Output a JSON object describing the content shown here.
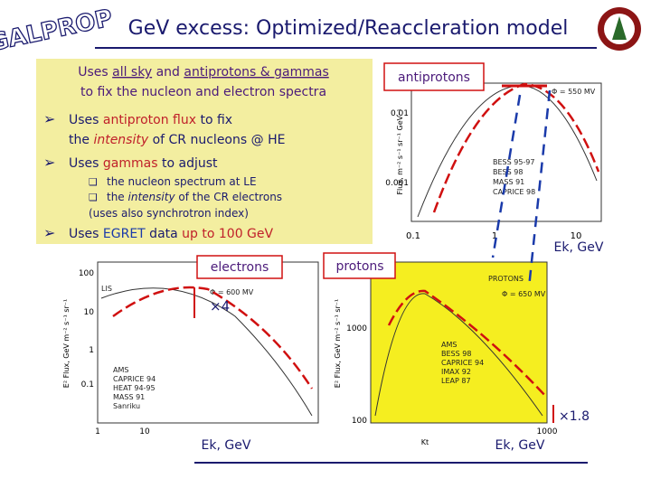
{
  "logo": "GALPROP",
  "title": "GeV excess: Optimized/Reaccleration model",
  "box": {
    "line1": [
      "Uses ",
      "all sky",
      " and ",
      "antiprotons & gammas"
    ],
    "line2": "to fix the nucleon and electron spectra",
    "bullets": [
      {
        "lines": [
          [
            "Uses ",
            "antiproton flux",
            " to fix"
          ],
          [
            "the ",
            "intensity",
            " of CR nucleons @ HE"
          ]
        ]
      },
      {
        "lines": [
          [
            "Uses ",
            "gammas",
            " to adjust"
          ]
        ],
        "sub": [
          [
            "the nucleon spectrum at LE"
          ],
          [
            "the ",
            "intensity",
            " of the CR electrons"
          ],
          [
            "(uses also synchrotron index)"
          ]
        ]
      },
      {
        "lines": [
          [
            "Uses ",
            "EGRET",
            " data ",
            "up to 100 GeV"
          ]
        ]
      }
    ]
  },
  "labels": {
    "antiprotons": "antiprotons",
    "electrons": "electrons",
    "protons": "protons",
    "ek1": "Ek, GeV",
    "ek2": "Ek, GeV",
    "ek3": "Ek, GeV",
    "x4": "×4",
    "x18": "×1.8"
  },
  "pbar_plot": {
    "ylabel": "Flux, m⁻² s⁻¹ sr⁻¹ GeV⁻¹",
    "phi": "Φ = 550 MV",
    "yticks": [
      "0.01",
      "0.001"
    ],
    "xticks": [
      "0.1",
      "1",
      "10"
    ],
    "legend": [
      "BESS 95-97",
      "BESS 98",
      "MASS 91",
      "CAPRICE 98"
    ]
  },
  "e_plot": {
    "ylabel": "E² Flux, GeV m⁻² s⁻¹ sr⁻¹",
    "lis": "LIS",
    "phi": "Φ = 600 MV",
    "yticks": [
      "100",
      "10",
      "1",
      "0.1"
    ],
    "xticks": [
      "1",
      "10"
    ],
    "legend": [
      "AMS",
      "CAPRICE 94",
      "HEAT 94-95",
      "MASS 91",
      "Sanriku"
    ]
  },
  "p_plot": {
    "ylabel": "E² Flux, GeV m⁻² s⁻¹ sr⁻¹",
    "name": "PROTONS",
    "phi": "Φ = 650 MV",
    "yticks": [
      "1000",
      "100"
    ],
    "xticks": [
      "1000"
    ],
    "xlabel": "Kt",
    "legend": [
      "AMS",
      "BESS 98",
      "CAPRICE 94",
      "IMAX 92",
      "LEAP 87"
    ]
  }
}
